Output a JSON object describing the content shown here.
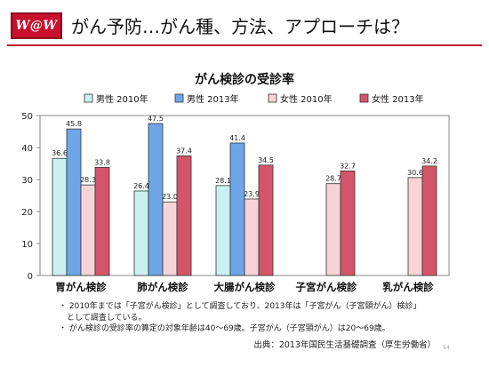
{
  "header": {
    "logo_text": "W@W",
    "title": "がん予防…がん種、方法、アプローチは？",
    "accent_color": "#c8102e"
  },
  "chart_data": {
    "type": "bar",
    "title": "がん検診の受診率",
    "categories": [
      "胃がん検診",
      "肺がん検診",
      "大腸がん検診",
      "子宮がん検診",
      "乳がん検診"
    ],
    "ylim": [
      0,
      50
    ],
    "yticks": [
      0,
      10,
      20,
      30,
      40,
      50
    ],
    "grid": false,
    "legend_position": "top",
    "series": [
      {
        "name": "男性 2010年",
        "color": "#c9f1f1",
        "values": [
          36.6,
          26.4,
          28.1,
          null,
          null
        ],
        "labels": [
          "36.6",
          "26.4",
          "28.1",
          "",
          ""
        ]
      },
      {
        "name": "男性 2013年",
        "color": "#6ea6e8",
        "values": [
          45.8,
          47.5,
          41.4,
          null,
          null
        ],
        "labels": [
          "45.8",
          "47.5",
          "41.4",
          "",
          ""
        ]
      },
      {
        "name": "女性 2010年",
        "color": "#f6d3d6",
        "values": [
          28.3,
          23.0,
          23.9,
          28.7,
          30.6
        ],
        "labels": [
          "28.3",
          "23.0",
          "23.9",
          "28.7",
          "30.6"
        ]
      },
      {
        "name": "女性 2013年",
        "color": "#d4556a",
        "values": [
          33.8,
          37.4,
          34.5,
          32.7,
          34.2
        ],
        "labels": [
          "33.8",
          "37.4",
          "34.5",
          "32.7",
          "34.2"
        ]
      }
    ]
  },
  "notes": [
    "・ 2010年までは「子宮がん検診」として調査しており、2013年は「子宮がん（子宮頸がん）検診」",
    "　として調査している。",
    "・ がん検診の受診率の算定の対象年齢は40～69歳。子宮がん（子宮頸がん）は20～69歳。"
  ],
  "source": "出典：2013年国民生活基礎調査（厚生労働省）",
  "page_number": "54"
}
